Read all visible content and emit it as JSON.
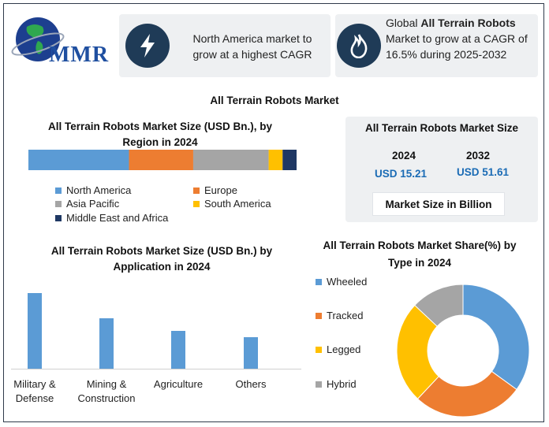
{
  "logo": {
    "text": "MMR"
  },
  "highlight1": {
    "text": "North America market to grow at a highest CAGR"
  },
  "highlight2": {
    "prefix": "Global ",
    "bold": "All Terrain Robots",
    "suffix": " Market to grow at a CAGR of 16.5% during 2025-2032"
  },
  "main_title": "All Terrain Robots Market",
  "size_card": {
    "title": "All Terrain Robots Market Size",
    "year1": "2024",
    "year2": "2032",
    "value1": "USD 15.21",
    "value2": "USD 51.61",
    "footer": "Market Size in Billion"
  },
  "colors": {
    "blue": "#5b9bd5",
    "orange": "#ed7d31",
    "gray": "#a5a5a5",
    "yellow": "#ffc000",
    "navy": "#1f3864",
    "value_blue": "#1a6bb5",
    "icon_bg": "#1f3b57"
  },
  "icons": {
    "highlight1": "lightning-bolt-icon",
    "highlight2": "flame-icon",
    "logo": "globe-icon"
  },
  "chart_data": [
    {
      "type": "bar",
      "orientation": "horizontal-stacked",
      "title": "All Terrain Robots Market Size (USD Bn.), by Region in 2024",
      "series": [
        {
          "name": "North America",
          "value": 36
        },
        {
          "name": "Europe",
          "value": 23
        },
        {
          "name": "Asia Pacific",
          "value": 27
        },
        {
          "name": "South America",
          "value": 5
        },
        {
          "name": "Middle East and Africa",
          "value": 5
        }
      ]
    },
    {
      "type": "bar",
      "title": "All Terrain Robots Market Size (USD Bn.) by Application in 2024",
      "categories": [
        "Military & Defense",
        "Mining & Construction",
        "Agriculture",
        "Others"
      ],
      "values": [
        96,
        64,
        48,
        40
      ],
      "ylim": [
        0,
        100
      ]
    },
    {
      "type": "pie",
      "style": "donut",
      "title": "All Terrain Robots Market Share(%) by Type in 2024",
      "labels": [
        "Wheeled",
        "Tracked",
        "Legged",
        "Hybrid"
      ],
      "values": [
        35,
        27,
        25,
        13
      ]
    }
  ]
}
